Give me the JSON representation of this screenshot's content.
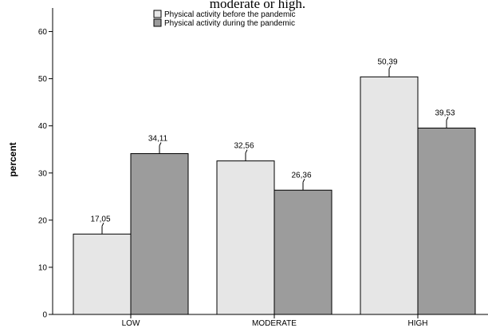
{
  "chart_data": {
    "type": "bar",
    "title_fragment": "moderate or high.",
    "ylabel": "percent",
    "xlabel": "",
    "categories": [
      "LOW",
      "MODERATE",
      "HIGH"
    ],
    "series": [
      {
        "name": "Physical activity before the pandemic",
        "values": [
          17.05,
          32.56,
          50.39
        ],
        "labels": [
          "17,05",
          "32,56",
          "50,39"
        ],
        "color": "#e6e6e6"
      },
      {
        "name": "Physical activity during the pandemic",
        "values": [
          34.11,
          26.36,
          39.53
        ],
        "labels": [
          "34,11",
          "26,36",
          "39,53"
        ],
        "color": "#9c9c9c"
      }
    ],
    "ylim": [
      0,
      65
    ],
    "yticks": [
      0,
      10,
      20,
      30,
      40,
      50,
      60
    ],
    "grid": false,
    "legend_position": "top-center"
  }
}
